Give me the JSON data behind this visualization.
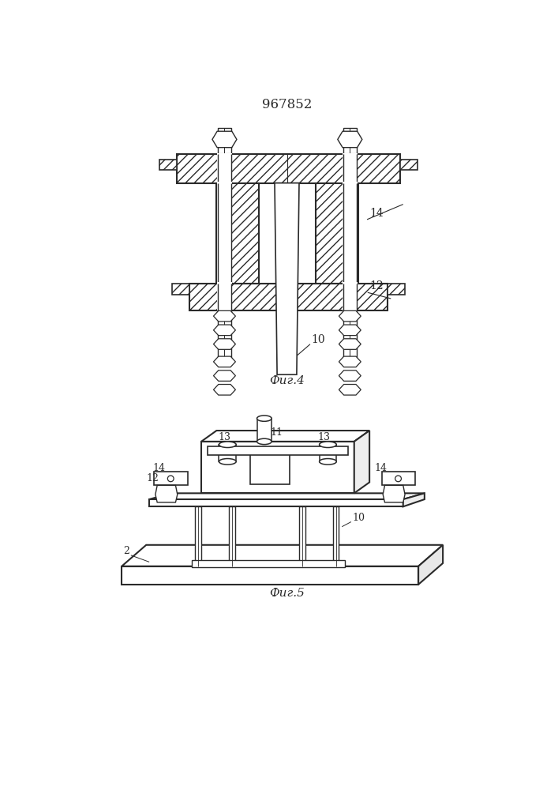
{
  "title": "967852",
  "fig4_label": "Фиг.4",
  "fig5_label": "Фиг.5",
  "bg_color": "#ffffff",
  "line_color": "#2a2a2a",
  "hatch_color": "#2a2a2a",
  "label_14": "14",
  "label_12": "12",
  "label_10": "10",
  "label_2": "2",
  "label_10b": "10",
  "label_11": "11",
  "label_13a": "13",
  "label_13b": "13",
  "label_14b": "14",
  "label_12b": "12",
  "label_14c": "14"
}
